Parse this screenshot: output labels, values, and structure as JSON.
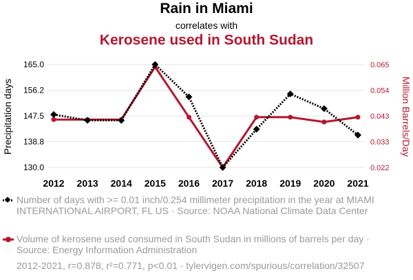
{
  "title": "Rain in Miami",
  "subtitle": "correlates with",
  "title2": "Kerosene used in South Sudan",
  "colors": {
    "series1": "#000000",
    "series2": "#b5172f",
    "grid": "#e6e6e6",
    "muted": "#9a9a9a"
  },
  "legend": {
    "series1_text": "Number of days with >= 0.01 inch/0.254 millimeter precipitation in the year at MIAMI INTERNATIONAL AIRPORT, FL US · Source: NOAA National Climate Data Center",
    "series2_text": "Volume of kerosene used consumed in South Sudan in millions of barrels per day · Source: Energy Information Administration"
  },
  "footer": "2012-2021, r=0.878, r²=0.771, p<0.01 · tylervigen.com/spurious/correlation/32507",
  "chart_data": {
    "type": "line",
    "categories": [
      "2012",
      "2013",
      "2014",
      "2015",
      "2016",
      "2017",
      "2018",
      "2019",
      "2020",
      "2021"
    ],
    "ylabel_left": "Precipitation days",
    "ylabel_right": "Million Barrels/Day",
    "yticks_left": [
      "165.0",
      "156.2",
      "147.5",
      "138.8",
      "130.0"
    ],
    "yticks_right": [
      "0.065",
      "0.054",
      "0.043",
      "0.033",
      "0.022"
    ],
    "ylim_left": [
      130,
      165
    ],
    "ylim_right": [
      0.022,
      0.065
    ],
    "grid": true,
    "series": [
      {
        "axis": "left",
        "style": "dotted",
        "marker": "diamond",
        "values": [
          148,
          146,
          146,
          165,
          154,
          130,
          143,
          155,
          150,
          141
        ]
      },
      {
        "axis": "right",
        "style": "solid",
        "marker": "circle",
        "values": [
          0.042,
          0.042,
          0.042,
          0.064,
          0.043,
          0.022,
          0.043,
          0.043,
          0.041,
          0.043
        ]
      }
    ]
  }
}
